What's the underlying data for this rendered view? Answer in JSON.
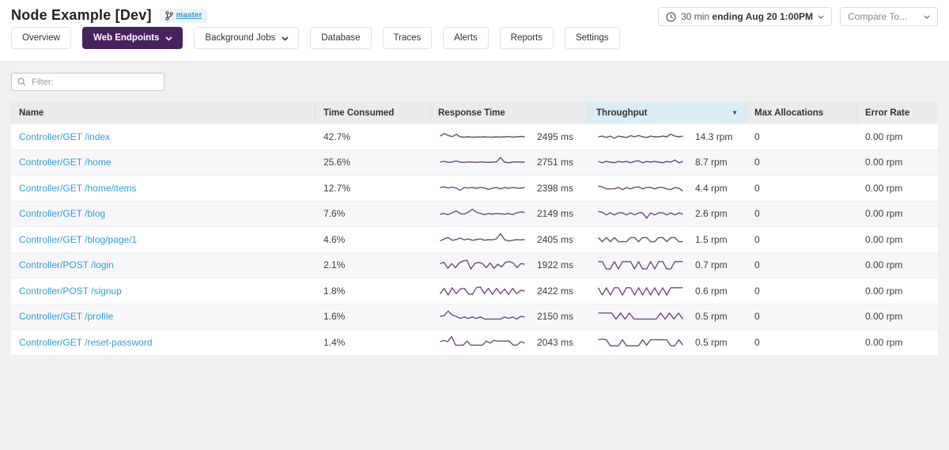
{
  "colors": {
    "accent_purple": "#48215f",
    "sparkline": "#6f4a80",
    "link_blue": "#2f9fd6",
    "sorted_header_bg": "#d9edf4"
  },
  "header": {
    "title": "Node Example [Dev]",
    "branch_label": "master",
    "time_range_prefix": "30 min ",
    "time_range_bold": "ending Aug 20 1:00PM",
    "compare_label": "Compare To..."
  },
  "tabs": [
    {
      "label": "Overview",
      "active": false,
      "dropdown": false
    },
    {
      "label": "Web Endpoints",
      "active": true,
      "dropdown": true
    },
    {
      "label": "Background Jobs",
      "active": false,
      "dropdown": true
    },
    {
      "label": "Database",
      "active": false,
      "dropdown": false
    },
    {
      "label": "Traces",
      "active": false,
      "dropdown": false
    },
    {
      "label": "Alerts",
      "active": false,
      "dropdown": false
    },
    {
      "label": "Reports",
      "active": false,
      "dropdown": false
    },
    {
      "label": "Settings",
      "active": false,
      "dropdown": false
    }
  ],
  "filter": {
    "placeholder": "Filter:"
  },
  "icons": {
    "sort_desc": "▼"
  },
  "table": {
    "columns": [
      "Name",
      "Time Consumed",
      "Response Time",
      "Throughput",
      "Max Allocations",
      "Error Rate"
    ],
    "sort_column": "Throughput",
    "sort_direction": "desc",
    "rows": [
      {
        "name": "Controller/GET /index",
        "time_consumed": "42.7%",
        "response_time": "2495 ms",
        "throughput": "14.3 rpm",
        "max_allocations": "0",
        "error_rate": "0.00 rpm",
        "rt_spark": [
          0.55,
          0.75,
          0.6,
          0.52,
          0.68,
          0.5,
          0.47,
          0.5,
          0.47,
          0.49,
          0.48,
          0.5,
          0.48,
          0.47,
          0.5,
          0.48,
          0.5,
          0.52,
          0.48,
          0.5,
          0.53,
          0.5
        ],
        "tp_spark": [
          0.5,
          0.55,
          0.45,
          0.55,
          0.4,
          0.55,
          0.5,
          0.45,
          0.58,
          0.5,
          0.6,
          0.5,
          0.45,
          0.55,
          0.5,
          0.5,
          0.55,
          0.5,
          0.7,
          0.55,
          0.5,
          0.55
        ]
      },
      {
        "name": "Controller/GET /home",
        "time_consumed": "25.6%",
        "response_time": "2751 ms",
        "throughput": "8.7 rpm",
        "max_allocations": "0",
        "error_rate": "0.00 rpm",
        "rt_spark": [
          0.5,
          0.56,
          0.48,
          0.52,
          0.58,
          0.5,
          0.48,
          0.52,
          0.5,
          0.48,
          0.52,
          0.5,
          0.48,
          0.5,
          0.52,
          0.85,
          0.5,
          0.45,
          0.5,
          0.52,
          0.5,
          0.5
        ],
        "tp_spark": [
          0.55,
          0.45,
          0.55,
          0.5,
          0.45,
          0.55,
          0.5,
          0.55,
          0.45,
          0.55,
          0.6,
          0.45,
          0.55,
          0.5,
          0.55,
          0.5,
          0.45,
          0.55,
          0.5,
          0.65,
          0.45,
          0.55
        ]
      },
      {
        "name": "Controller/GET /home/items",
        "time_consumed": "12.7%",
        "response_time": "2398 ms",
        "throughput": "4.4 rpm",
        "max_allocations": "0",
        "error_rate": "0.00 rpm",
        "rt_spark": [
          0.55,
          0.6,
          0.52,
          0.58,
          0.5,
          0.35,
          0.55,
          0.52,
          0.55,
          0.5,
          0.55,
          0.52,
          0.42,
          0.5,
          0.55,
          0.45,
          0.55,
          0.5,
          0.55,
          0.52,
          0.5,
          0.55
        ],
        "tp_spark": [
          0.65,
          0.6,
          0.45,
          0.45,
          0.45,
          0.55,
          0.4,
          0.55,
          0.45,
          0.55,
          0.6,
          0.45,
          0.55,
          0.55,
          0.45,
          0.55,
          0.55,
          0.45,
          0.4,
          0.55,
          0.5,
          0.3
        ]
      },
      {
        "name": "Controller/GET /blog",
        "time_consumed": "7.6%",
        "response_time": "2149 ms",
        "throughput": "2.6 rpm",
        "max_allocations": "0",
        "error_rate": "0.00 rpm",
        "rt_spark": [
          0.45,
          0.5,
          0.42,
          0.55,
          0.68,
          0.5,
          0.45,
          0.6,
          0.82,
          0.6,
          0.5,
          0.42,
          0.5,
          0.45,
          0.5,
          0.48,
          0.45,
          0.5,
          0.42,
          0.55,
          0.62,
          0.58
        ],
        "tp_spark": [
          0.65,
          0.6,
          0.4,
          0.55,
          0.4,
          0.55,
          0.55,
          0.4,
          0.55,
          0.4,
          0.55,
          0.55,
          0.15,
          0.55,
          0.4,
          0.55,
          0.55,
          0.4,
          0.55,
          0.4,
          0.55,
          0.45
        ]
      },
      {
        "name": "Controller/GET /blog/page/1",
        "time_consumed": "4.6%",
        "response_time": "2405 ms",
        "throughput": "1.5 rpm",
        "max_allocations": "0",
        "error_rate": "0.00 rpm",
        "rt_spark": [
          0.4,
          0.55,
          0.65,
          0.45,
          0.5,
          0.62,
          0.48,
          0.55,
          0.45,
          0.5,
          0.55,
          0.45,
          0.5,
          0.48,
          0.55,
          0.95,
          0.5,
          0.4,
          0.45,
          0.5,
          0.48,
          0.5
        ],
        "tp_spark": [
          0.65,
          0.35,
          0.65,
          0.35,
          0.65,
          0.35,
          0.35,
          0.35,
          0.65,
          0.65,
          0.35,
          0.65,
          0.65,
          0.35,
          0.35,
          0.65,
          0.65,
          0.35,
          0.65,
          0.65,
          0.35,
          0.35
        ]
      },
      {
        "name": "Controller/POST /login",
        "time_consumed": "2.1%",
        "response_time": "1922 ms",
        "throughput": "0.7 rpm",
        "max_allocations": "0",
        "error_rate": "0.00 rpm",
        "rt_spark": [
          0.6,
          0.7,
          0.25,
          0.6,
          0.3,
          0.65,
          0.8,
          0.85,
          0.2,
          0.6,
          0.7,
          0.6,
          0.3,
          0.65,
          0.25,
          0.55,
          0.35,
          0.7,
          0.75,
          0.65,
          0.3,
          0.6,
          0.55
        ],
        "tp_spark": [
          0.75,
          0.75,
          0.2,
          0.2,
          0.75,
          0.2,
          0.75,
          0.75,
          0.75,
          0.2,
          0.75,
          0.2,
          0.2,
          0.75,
          0.2,
          0.75,
          0.75,
          0.2,
          0.2,
          0.75,
          0.75,
          0.75
        ]
      },
      {
        "name": "Controller/POST /signup",
        "time_consumed": "1.8%",
        "response_time": "2422 ms",
        "throughput": "0.6 rpm",
        "max_allocations": "0",
        "error_rate": "0.00 rpm",
        "rt_spark": [
          0.3,
          0.7,
          0.2,
          0.75,
          0.3,
          0.65,
          0.7,
          0.3,
          0.25,
          0.75,
          0.8,
          0.3,
          0.7,
          0.25,
          0.7,
          0.3,
          0.65,
          0.25,
          0.7,
          0.3,
          0.55,
          0.5
        ],
        "tp_spark": [
          0.75,
          0.2,
          0.75,
          0.2,
          0.75,
          0.75,
          0.2,
          0.75,
          0.75,
          0.2,
          0.75,
          0.2,
          0.75,
          0.2,
          0.75,
          0.2,
          0.75,
          0.2,
          0.75,
          0.75,
          0.75,
          0.75
        ]
      },
      {
        "name": "Controller/GET /profile",
        "time_consumed": "1.6%",
        "response_time": "2150 ms",
        "throughput": "0.5 rpm",
        "max_allocations": "0",
        "error_rate": "0.00 rpm",
        "rt_spark": [
          0.5,
          0.55,
          0.9,
          0.6,
          0.5,
          0.35,
          0.45,
          0.35,
          0.45,
          0.35,
          0.45,
          0.3,
          0.3,
          0.3,
          0.3,
          0.3,
          0.45,
          0.35,
          0.45,
          0.3,
          0.5,
          0.45
        ],
        "tp_spark": [
          0.75,
          0.75,
          0.75,
          0.75,
          0.3,
          0.75,
          0.3,
          0.75,
          0.3,
          0.3,
          0.3,
          0.3,
          0.3,
          0.3,
          0.75,
          0.3,
          0.75,
          0.3,
          0.75,
          0.3
        ]
      },
      {
        "name": "Controller/GET /reset-password",
        "time_consumed": "1.4%",
        "response_time": "2043 ms",
        "throughput": "0.5 rpm",
        "max_allocations": "0",
        "error_rate": "0.00 rpm",
        "rt_spark": [
          0.55,
          0.65,
          0.55,
          0.95,
          0.3,
          0.3,
          0.3,
          0.6,
          0.3,
          0.3,
          0.3,
          0.3,
          0.6,
          0.45,
          0.65,
          0.6,
          0.6,
          0.6,
          0.6,
          0.3,
          0.3,
          0.55,
          0.45
        ],
        "tp_spark": [
          0.7,
          0.75,
          0.7,
          0.25,
          0.25,
          0.25,
          0.7,
          0.25,
          0.25,
          0.25,
          0.25,
          0.7,
          0.3,
          0.7,
          0.7,
          0.7,
          0.7,
          0.7,
          0.25,
          0.25,
          0.7,
          0.3
        ]
      }
    ]
  }
}
